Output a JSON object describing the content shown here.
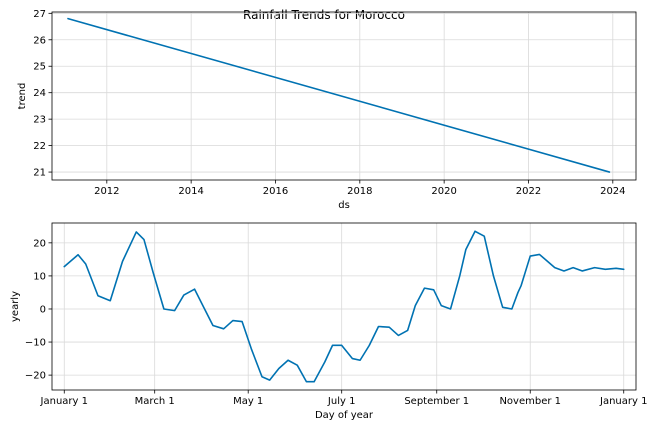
{
  "figure_title": "Rainfall Trends for Morocco",
  "colors": {
    "line": "#0072b2",
    "grid": "#d9d9d9"
  },
  "chart_data": [
    {
      "type": "line",
      "title": "",
      "xlabel": "ds",
      "ylabel": "trend",
      "xlim": [
        2010.7,
        2024.55
      ],
      "ylim": [
        20.7,
        27.05
      ],
      "xticks": [
        2012,
        2014,
        2016,
        2018,
        2020,
        2022,
        2024
      ],
      "xtick_labels": [
        "2012",
        "2014",
        "2016",
        "2018",
        "2020",
        "2022",
        "2024"
      ],
      "yticks": [
        21,
        22,
        23,
        24,
        25,
        26,
        27
      ],
      "ytick_labels": [
        "21",
        "22",
        "23",
        "24",
        "25",
        "26",
        "27"
      ],
      "grid": true,
      "series": [
        {
          "x": [
            2011.08,
            2023.92
          ],
          "y": [
            26.8,
            21.0
          ]
        }
      ]
    },
    {
      "type": "line",
      "title": "",
      "xlabel": "Day of year",
      "ylabel": "yearly",
      "xlim": [
        -8,
        373
      ],
      "ylim": [
        -24.5,
        26
      ],
      "xticks": [
        0,
        59,
        120,
        181,
        243,
        304,
        365
      ],
      "xtick_labels": [
        "January 1",
        "March 1",
        "May 1",
        "July 1",
        "September 1",
        "November 1",
        "January 1"
      ],
      "yticks": [
        -20,
        -10,
        0,
        10,
        20
      ],
      "ytick_labels": [
        "−20",
        "−10",
        "0",
        "10",
        "20"
      ],
      "grid": true,
      "series": [
        {
          "x": [
            0,
            9,
            14,
            22,
            30,
            38,
            47,
            52,
            58,
            65,
            72,
            78,
            85,
            91,
            97,
            104,
            110,
            116,
            122,
            129,
            134,
            140,
            146,
            152,
            158,
            163,
            170,
            175,
            181,
            188,
            193,
            199,
            205,
            212,
            218,
            224,
            229,
            235,
            241,
            246,
            252,
            258,
            262,
            268,
            274,
            280,
            286,
            292,
            296,
            298,
            304,
            310,
            315,
            320,
            326,
            332,
            338,
            346,
            353,
            360,
            365
          ],
          "y": [
            12.8,
            16.4,
            13.6,
            4.0,
            2.5,
            14.4,
            23.3,
            21.0,
            11.0,
            0.0,
            -0.5,
            4.2,
            6.0,
            0.5,
            -5.0,
            -6.0,
            -3.5,
            -3.8,
            -12.0,
            -20.5,
            -21.5,
            -18.0,
            -15.5,
            -17.0,
            -22.0,
            -22.0,
            -16.0,
            -11.0,
            -11.0,
            -15.0,
            -15.5,
            -11.0,
            -5.3,
            -5.5,
            -8.0,
            -6.5,
            1.0,
            6.3,
            5.8,
            1.0,
            0.0,
            10.0,
            18.0,
            23.5,
            22.0,
            10.0,
            0.5,
            0.0,
            5.0,
            7.0,
            16.0,
            16.5,
            14.5,
            12.5,
            11.5,
            12.5,
            11.5,
            12.5,
            12.0,
            12.3,
            12.0
          ]
        }
      ]
    }
  ]
}
